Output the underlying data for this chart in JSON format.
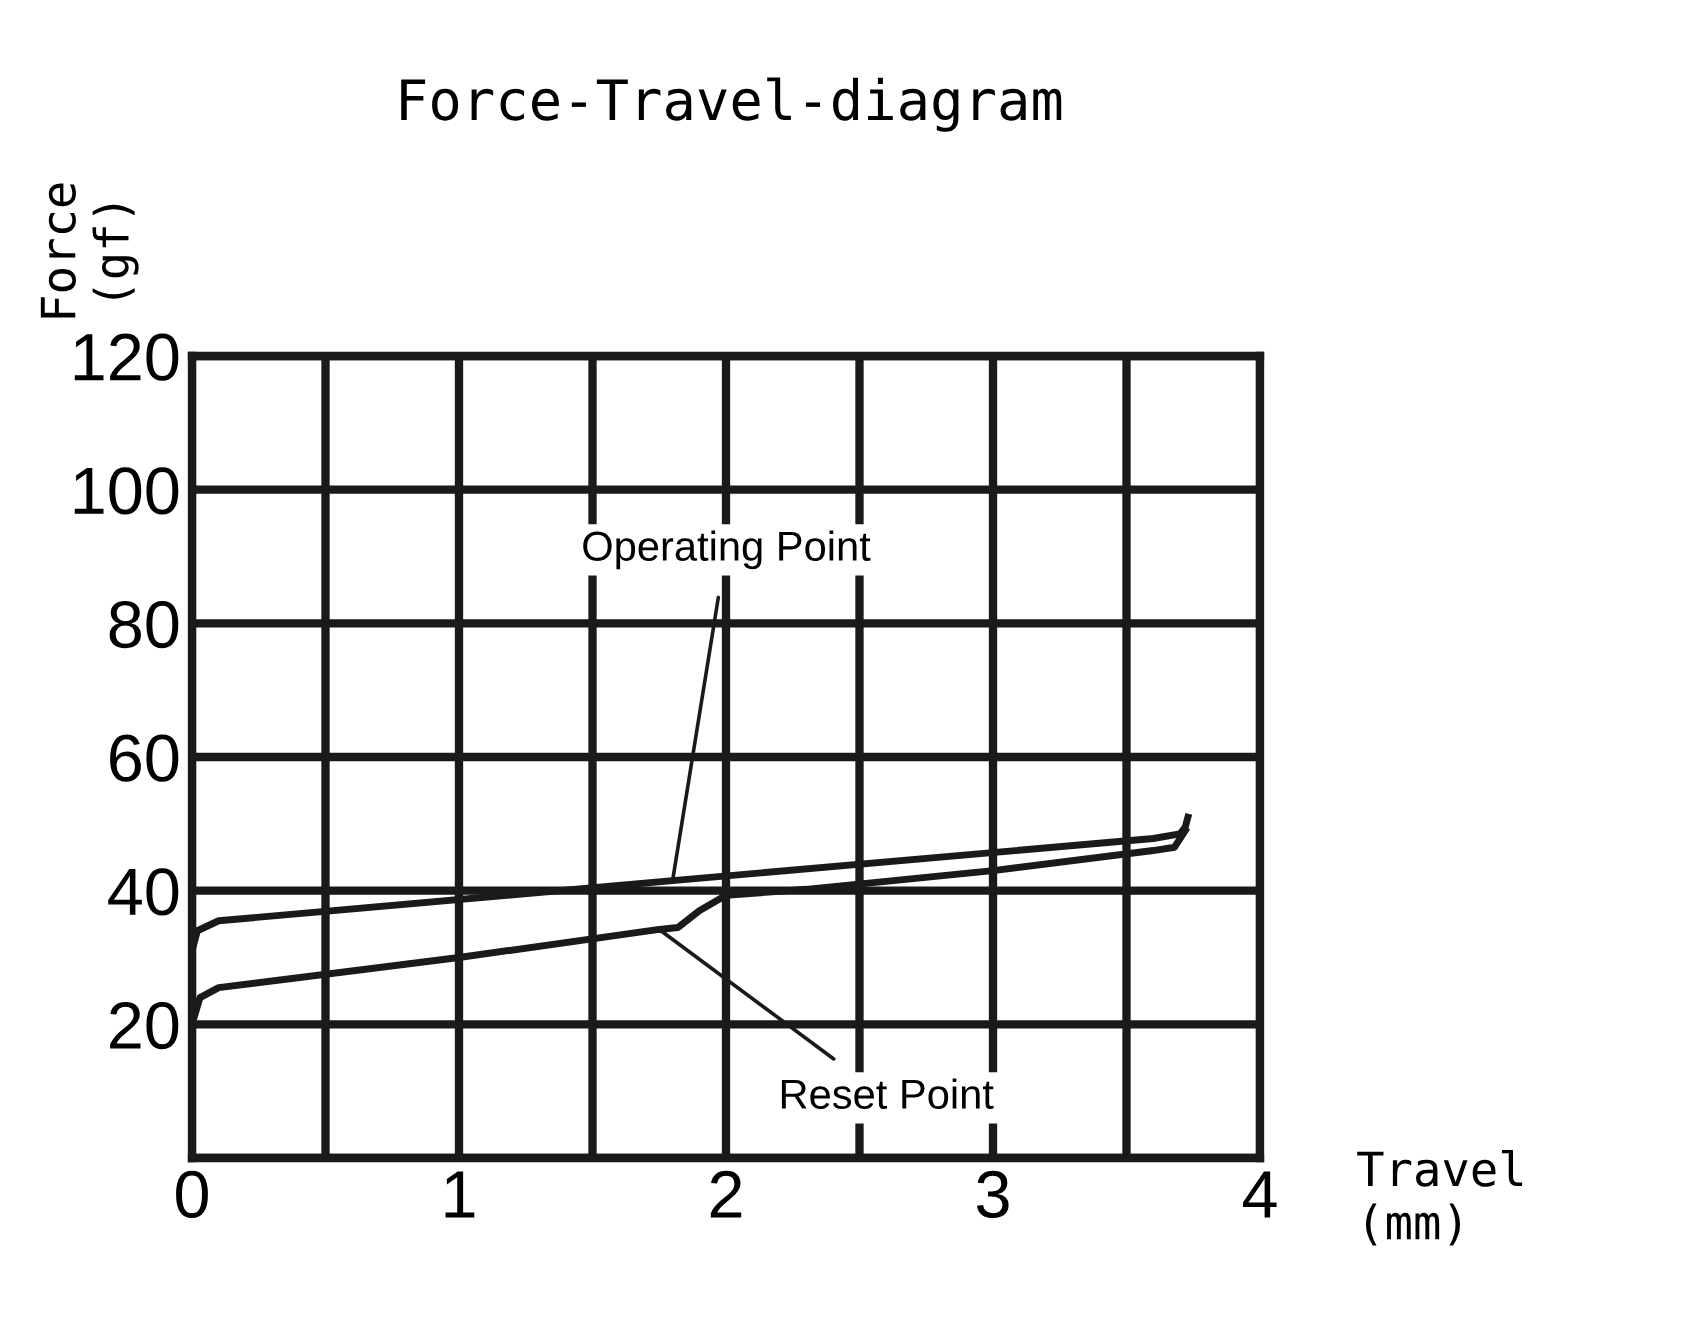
{
  "chart_data": {
    "type": "line",
    "title": "Force-Travel-diagram",
    "xlabel": "Travel\n(mm)",
    "ylabel": "Force\n(gf)",
    "series": [
      {
        "color": "#1a1a1a",
        "x": [
          0,
          0.02,
          0.1,
          1.8,
          3.6,
          3.7,
          3.72,
          3.73
        ],
        "values": [
          31,
          34,
          35.5,
          41.5,
          47.8,
          48.5,
          49.5,
          51
        ]
      },
      {
        "color": "#1a1a1a",
        "x": [
          0,
          0.03,
          0.1,
          1.0,
          1.75,
          1.82,
          1.9,
          2.0,
          2.3,
          3.0,
          3.6,
          3.68,
          3.72
        ],
        "values": [
          20,
          24,
          25.5,
          30,
          34.2,
          34.5,
          37,
          39.3,
          40.2,
          43,
          46,
          46.5,
          49
        ]
      }
    ],
    "annotations": [
      {
        "text": "Operating Point",
        "x": 1.8,
        "y": 41.5
      },
      {
        "text": "Reset Point",
        "x": 1.75,
        "y": 34.2
      }
    ],
    "xlim": [
      0,
      4
    ],
    "ylim": [
      0,
      120
    ],
    "xticks": [
      0,
      {
        "value": 0.5,
        "label": null
      },
      1,
      {
        "value": 1.5,
        "label": null
      },
      2,
      {
        "value": 2.5,
        "label": null
      },
      3,
      {
        "value": 3.5,
        "label": null
      },
      4
    ],
    "yticks": [
      {
        "value": 0,
        "label": null
      },
      20,
      40,
      60,
      80,
      100,
      120
    ],
    "grid": true,
    "marker": "none",
    "line_style": "solid"
  }
}
